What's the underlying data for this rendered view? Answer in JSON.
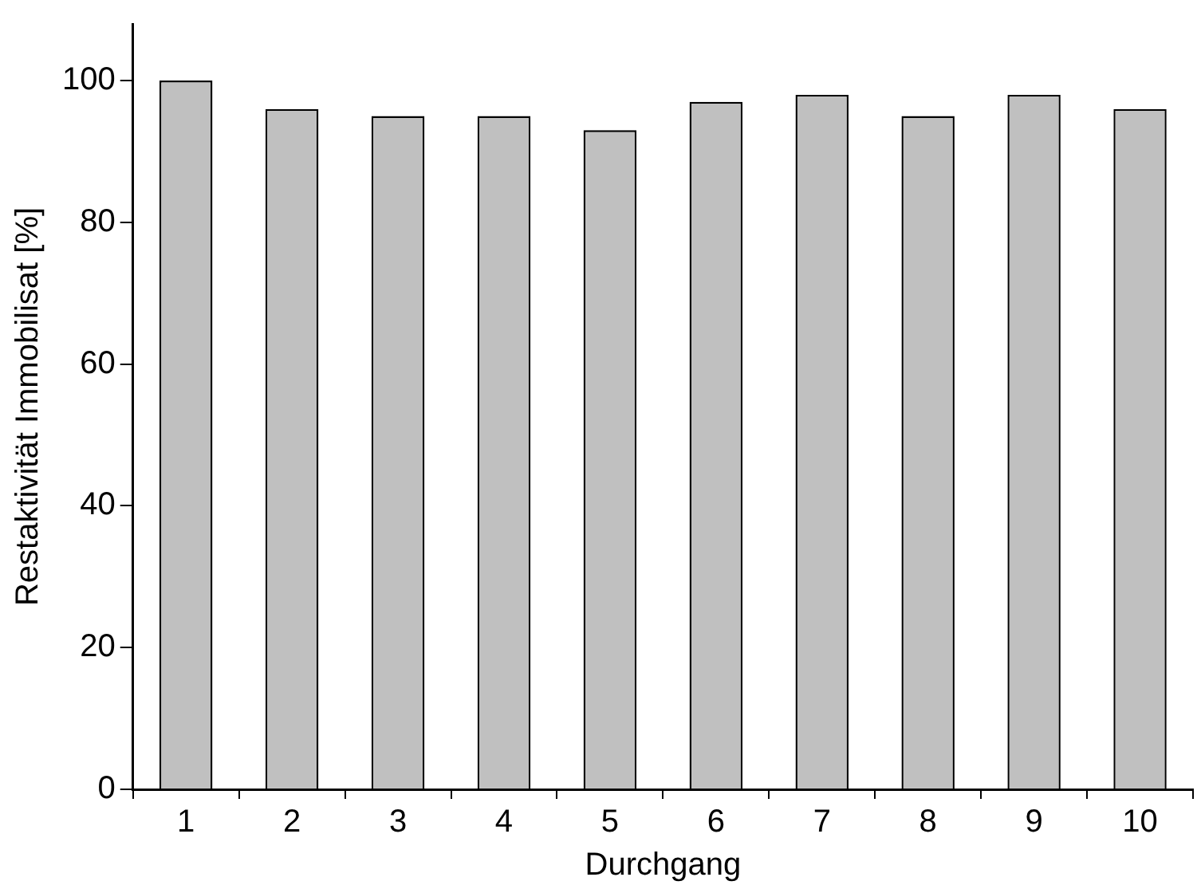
{
  "chart_data": {
    "type": "bar",
    "xlabel": "Durchgang",
    "ylabel": "Restaktivität Immobilisat [%]",
    "categories": [
      "1",
      "2",
      "3",
      "4",
      "5",
      "6",
      "7",
      "8",
      "9",
      "10"
    ],
    "values": [
      100,
      96,
      95,
      95,
      93,
      97,
      98,
      95,
      98,
      96
    ],
    "color": "#c0c0c0",
    "ylim": [
      0,
      108
    ],
    "yticks": [
      0,
      20,
      40,
      60,
      80,
      100
    ],
    "grid": false,
    "legend": false
  }
}
